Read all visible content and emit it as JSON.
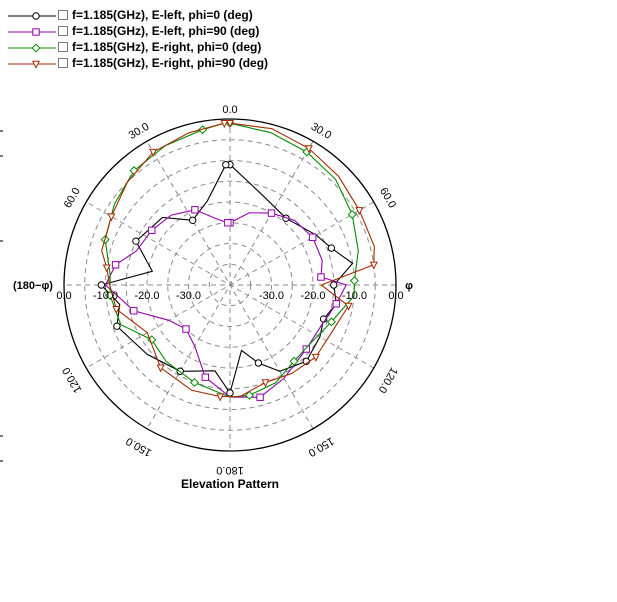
{
  "legend": {
    "items": [
      {
        "label": "f=1.185(GHz), E-left, phi=0 (deg)",
        "color": "#000000",
        "marker": "circle"
      },
      {
        "label": "f=1.185(GHz), E-left, phi=90 (deg)",
        "color": "#9400b0",
        "marker": "square"
      },
      {
        "label": "f=1.185(GHz), E-right, phi=0 (deg)",
        "color": "#008c00",
        "marker": "diamond"
      },
      {
        "label": "f=1.185(GHz), E-right, phi=90 (deg)",
        "color": "#a52a00",
        "marker": "triangle-down"
      }
    ]
  },
  "chart_data": {
    "type": "polar",
    "title": "Elevation Pattern",
    "left_axis_label": "(180−φ)",
    "right_axis_label": "φ",
    "angle_labels": {
      "top": "0.0",
      "bottom": "180.0",
      "left_upper": [
        "30.0",
        "60.0"
      ],
      "right_upper": [
        "30.0",
        "60.0"
      ],
      "left_lower": [
        "120.0",
        "150.0"
      ],
      "right_lower": [
        "120.0",
        "150.0"
      ]
    },
    "radial_tick_labels": {
      "left": [
        "0.0",
        "-10.0",
        "-20.0",
        "-30.0"
      ],
      "right": [
        "-30.0",
        "-20.0",
        "-10.0",
        "0.0"
      ]
    },
    "r_range_db": [
      -40,
      0
    ],
    "ring_step_db": 5,
    "spoke_step_deg": 30,
    "series": [
      {
        "color": "#000000",
        "marker": "circle",
        "points": [
          [
            0,
            -11
          ],
          [
            20,
            -17
          ],
          [
            40,
            -19
          ],
          [
            60,
            -16
          ],
          [
            70,
            -14
          ],
          [
            80,
            -10
          ],
          [
            90,
            -15
          ],
          [
            100,
            -14
          ],
          [
            110,
            -16
          ],
          [
            120,
            -15
          ],
          [
            135,
            -14
          ],
          [
            150,
            -16
          ],
          [
            160,
            -20
          ],
          [
            170,
            -24
          ],
          [
            180,
            -14
          ],
          [
            190,
            -19
          ],
          [
            210,
            -16
          ],
          [
            230,
            -14
          ],
          [
            250,
            -11
          ],
          [
            260,
            -13
          ],
          [
            270,
            -9
          ],
          [
            280,
            -21
          ],
          [
            295,
            -15
          ],
          [
            315,
            -17
          ],
          [
            330,
            -22
          ],
          [
            345,
            -19
          ],
          [
            358,
            -11
          ]
        ]
      },
      {
        "color": "#9400b0",
        "marker": "square",
        "points": [
          [
            0,
            -25
          ],
          [
            15,
            -22
          ],
          [
            30,
            -20
          ],
          [
            45,
            -18
          ],
          [
            60,
            -17
          ],
          [
            75,
            -17
          ],
          [
            85,
            -18
          ],
          [
            90,
            -12
          ],
          [
            100,
            -14
          ],
          [
            115,
            -16
          ],
          [
            130,
            -16
          ],
          [
            150,
            -14
          ],
          [
            165,
            -12
          ],
          [
            180,
            -13
          ],
          [
            195,
            -17
          ],
          [
            210,
            -23
          ],
          [
            225,
            -25
          ],
          [
            240,
            -23
          ],
          [
            255,
            -16
          ],
          [
            270,
            -10
          ],
          [
            280,
            -12
          ],
          [
            290,
            -16
          ],
          [
            305,
            -17
          ],
          [
            320,
            -18
          ],
          [
            335,
            -20
          ],
          [
            350,
            -24
          ],
          [
            358,
            -25
          ]
        ]
      },
      {
        "color": "#008c00",
        "marker": "diamond",
        "points": [
          [
            0,
            -1
          ],
          [
            15,
            -2
          ],
          [
            30,
            -3
          ],
          [
            45,
            -4
          ],
          [
            60,
            -6
          ],
          [
            75,
            -8
          ],
          [
            88,
            -10
          ],
          [
            95,
            -10
          ],
          [
            110,
            -14
          ],
          [
            125,
            -16
          ],
          [
            140,
            -16
          ],
          [
            155,
            -14
          ],
          [
            170,
            -13
          ],
          [
            180,
            -13
          ],
          [
            200,
            -15
          ],
          [
            220,
            -16
          ],
          [
            235,
            -17
          ],
          [
            250,
            -12
          ],
          [
            265,
            -11
          ],
          [
            275,
            -11
          ],
          [
            290,
            -8
          ],
          [
            305,
            -6
          ],
          [
            320,
            -4
          ],
          [
            335,
            -3
          ],
          [
            350,
            -2
          ],
          [
            358,
            -1
          ]
        ]
      },
      {
        "color": "#a52a00",
        "marker": "triangle-down",
        "points": [
          [
            0,
            -1
          ],
          [
            15,
            -1
          ],
          [
            30,
            -2
          ],
          [
            45,
            -3
          ],
          [
            60,
            -4
          ],
          [
            75,
            -4
          ],
          [
            82,
            -5
          ],
          [
            90,
            -18
          ],
          [
            100,
            -11
          ],
          [
            115,
            -13
          ],
          [
            130,
            -13
          ],
          [
            145,
            -14
          ],
          [
            160,
            -15
          ],
          [
            175,
            -13
          ],
          [
            185,
            -13
          ],
          [
            200,
            -13
          ],
          [
            220,
            -14
          ],
          [
            240,
            -17
          ],
          [
            258,
            -12
          ],
          [
            270,
            -11
          ],
          [
            278,
            -10
          ],
          [
            285,
            -8
          ],
          [
            300,
            -7
          ],
          [
            315,
            -5
          ],
          [
            330,
            -3
          ],
          [
            345,
            -2
          ],
          [
            358,
            -1
          ]
        ]
      }
    ]
  }
}
